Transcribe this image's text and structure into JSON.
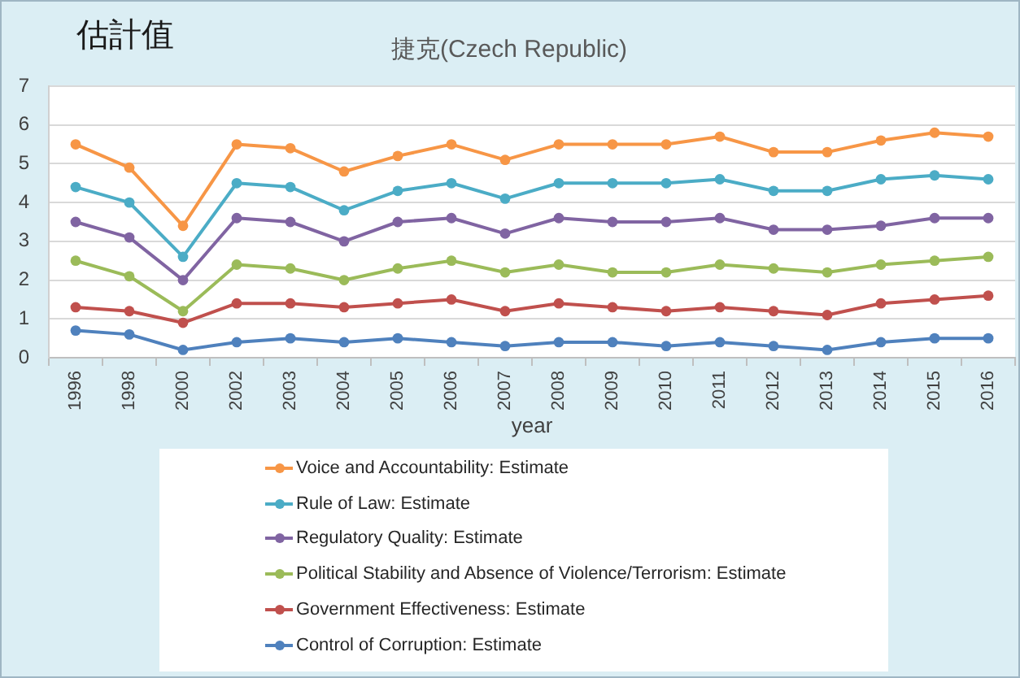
{
  "chart_data": {
    "type": "line",
    "title": "捷克(Czech Republic)",
    "ylabel": "估計值",
    "xlabel": "year",
    "categories": [
      "1996",
      "1998",
      "2000",
      "2002",
      "2003",
      "2004",
      "2005",
      "2006",
      "2007",
      "2008",
      "2009",
      "2010",
      "2011",
      "2012",
      "2013",
      "2014",
      "2015",
      "2016"
    ],
    "series": [
      {
        "name": "Voice and Accountability: Estimate",
        "color": "#f79646",
        "values": [
          5.5,
          4.9,
          3.4,
          5.5,
          5.4,
          4.8,
          5.2,
          5.5,
          5.1,
          5.5,
          5.5,
          5.5,
          5.7,
          5.3,
          5.3,
          5.6,
          5.8,
          5.7
        ]
      },
      {
        "name": "Rule of Law: Estimate",
        "color": "#4bacc6",
        "values": [
          4.4,
          4.0,
          2.6,
          4.5,
          4.4,
          3.8,
          4.3,
          4.5,
          4.1,
          4.5,
          4.5,
          4.5,
          4.6,
          4.3,
          4.3,
          4.6,
          4.7,
          4.6
        ]
      },
      {
        "name": "Regulatory Quality: Estimate",
        "color": "#8064a2",
        "values": [
          3.5,
          3.1,
          2.0,
          3.6,
          3.5,
          3.0,
          3.5,
          3.6,
          3.2,
          3.6,
          3.5,
          3.5,
          3.6,
          3.3,
          3.3,
          3.4,
          3.6,
          3.6
        ]
      },
      {
        "name": "Political Stability and Absence of Violence/Terrorism: Estimate",
        "color": "#9bbb59",
        "values": [
          2.5,
          2.1,
          1.2,
          2.4,
          2.3,
          2.0,
          2.3,
          2.5,
          2.2,
          2.4,
          2.2,
          2.2,
          2.4,
          2.3,
          2.2,
          2.4,
          2.5,
          2.6
        ]
      },
      {
        "name": "Government Effectiveness: Estimate",
        "color": "#c0504d",
        "values": [
          1.3,
          1.2,
          0.9,
          1.4,
          1.4,
          1.3,
          1.4,
          1.5,
          1.2,
          1.4,
          1.3,
          1.2,
          1.3,
          1.2,
          1.1,
          1.4,
          1.5,
          1.6
        ]
      },
      {
        "name": "Control of Corruption: Estimate",
        "color": "#4f81bd",
        "values": [
          0.7,
          0.6,
          0.2,
          0.4,
          0.5,
          0.4,
          0.5,
          0.4,
          0.3,
          0.4,
          0.4,
          0.3,
          0.4,
          0.3,
          0.2,
          0.4,
          0.5,
          0.5
        ]
      }
    ],
    "ylim": [
      0,
      7
    ],
    "yticks": [
      0,
      1,
      2,
      3,
      4,
      5,
      6,
      7
    ],
    "grid": "y",
    "legend": "bottom",
    "marker": "circle",
    "line_style": "solid"
  }
}
